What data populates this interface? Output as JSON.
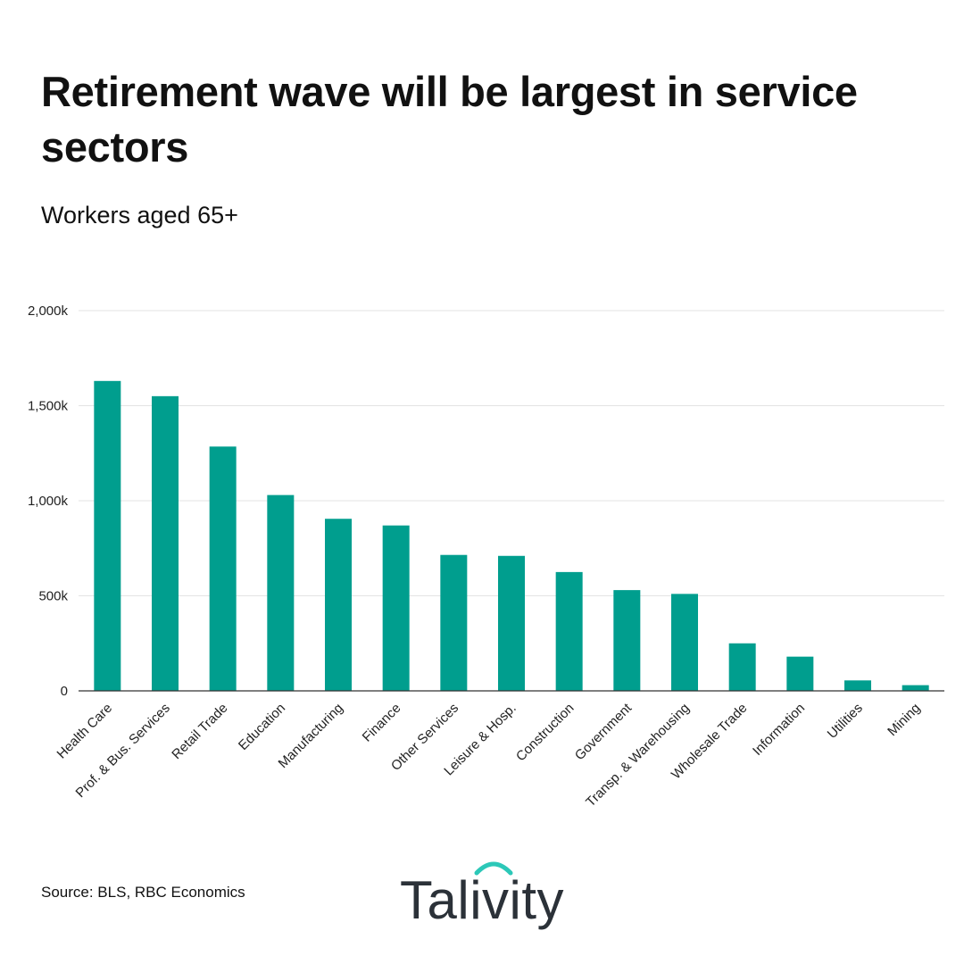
{
  "header": {
    "title": "Retirement wave will be largest in service sectors",
    "subtitle": "Workers aged 65+"
  },
  "chart_data": {
    "type": "bar",
    "title": "Retirement wave will be largest in service sectors",
    "subtitle": "Workers aged 65+",
    "xlabel": "",
    "ylabel": "",
    "ylim": [
      0,
      2000
    ],
    "yticks": [
      {
        "value": 0,
        "label": "0"
      },
      {
        "value": 500,
        "label": "500k"
      },
      {
        "value": 1000,
        "label": "1,000k"
      },
      {
        "value": 1500,
        "label": "1,500k"
      },
      {
        "value": 2000,
        "label": "2,000k"
      }
    ],
    "grid": true,
    "categories": [
      "Health Care",
      "Prof. & Bus. Services",
      "Retail Trade",
      "Education",
      "Manufacturing",
      "Finance",
      "Other Services",
      "Leisure & Hosp.",
      "Construction",
      "Government",
      "Transp. & Warehousing",
      "Wholesale Trade",
      "Information",
      "Utilities",
      "Mining"
    ],
    "values": [
      1630,
      1550,
      1285,
      1030,
      905,
      870,
      715,
      710,
      625,
      530,
      510,
      250,
      180,
      55,
      30
    ],
    "bar_color": "#009e8e"
  },
  "footer": {
    "source": "Source: BLS, RBC Economics",
    "logo_text": "Talivity",
    "logo_accent": "#2cc8b8"
  }
}
